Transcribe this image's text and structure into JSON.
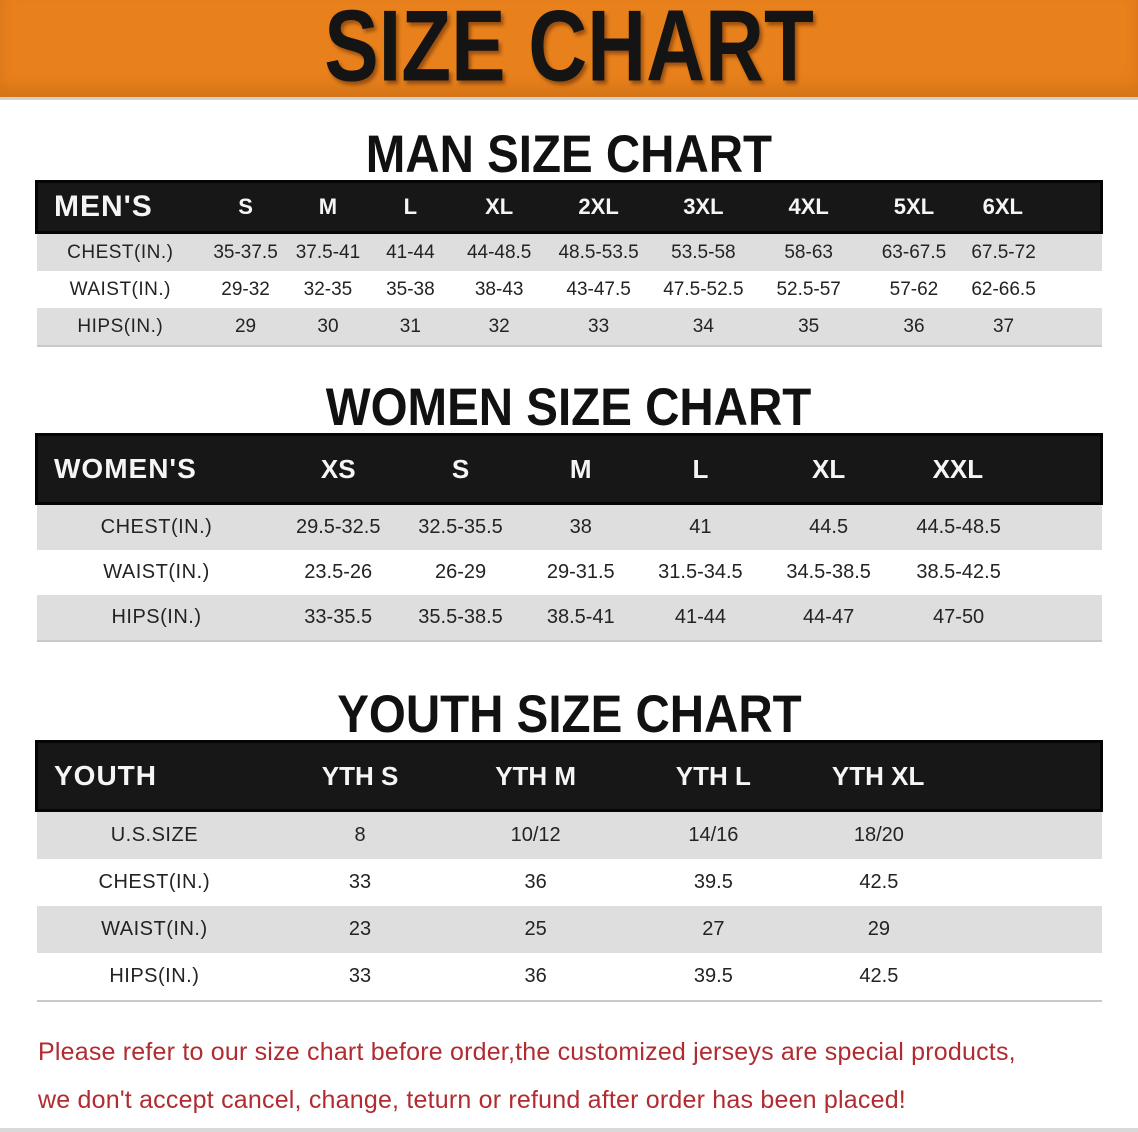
{
  "banner": {
    "title": "SIZE CHART",
    "bg_color": "#e8811c",
    "text_color": "#141414"
  },
  "sections": [
    {
      "title": "MAN SIZE CHART",
      "table": {
        "corner": "MEN'S",
        "sizes": [
          "S",
          "M",
          "L",
          "XL",
          "2XL",
          "3XL",
          "4XL",
          "5XL",
          "6XL"
        ],
        "rows": [
          {
            "label": "CHEST(IN.)",
            "values": [
              "35-37.5",
              "37.5-41",
              "41-44",
              "44-48.5",
              "48.5-53.5",
              "53.5-58",
              "58-63",
              "63-67.5",
              "67.5-72"
            ]
          },
          {
            "label": "WAIST(IN.)",
            "values": [
              "29-32",
              "32-35",
              "35-38",
              "38-43",
              "43-47.5",
              "47.5-52.5",
              "52.5-57",
              "57-62",
              "62-66.5"
            ]
          },
          {
            "label": "HIPS(IN.)",
            "values": [
              "29",
              "30",
              "31",
              "32",
              "33",
              "34",
              "35",
              "36",
              "37"
            ]
          }
        ]
      }
    },
    {
      "title": "WOMEN SIZE CHART",
      "table": {
        "corner": "WOMEN'S",
        "sizes": [
          "XS",
          "S",
          "M",
          "L",
          "XL",
          "XXL"
        ],
        "rows": [
          {
            "label": "CHEST(IN.)",
            "values": [
              "29.5-32.5",
              "32.5-35.5",
              "38",
              "41",
              "44.5",
              "44.5-48.5"
            ]
          },
          {
            "label": "WAIST(IN.)",
            "values": [
              "23.5-26",
              "26-29",
              "29-31.5",
              "31.5-34.5",
              "34.5-38.5",
              "38.5-42.5"
            ]
          },
          {
            "label": "HIPS(IN.)",
            "values": [
              "33-35.5",
              "35.5-38.5",
              "38.5-41",
              "41-44",
              "44-47",
              "47-50"
            ]
          }
        ]
      }
    },
    {
      "title": "YOUTH SIZE CHART",
      "table": {
        "corner": "YOUTH",
        "sizes": [
          "YTH S",
          "YTH M",
          "YTH L",
          "YTH XL"
        ],
        "rows": [
          {
            "label": "U.S.SIZE",
            "values": [
              "8",
              "10/12",
              "14/16",
              "18/20"
            ]
          },
          {
            "label": "CHEST(IN.)",
            "values": [
              "33",
              "36",
              "39.5",
              "42.5"
            ]
          },
          {
            "label": "WAIST(IN.)",
            "values": [
              "23",
              "25",
              "27",
              "29"
            ]
          },
          {
            "label": "HIPS(IN.)",
            "values": [
              "33",
              "36",
              "39.5",
              "42.5"
            ]
          }
        ]
      }
    }
  ],
  "footer": {
    "line1": "Please refer to our size chart before order,the customized jerseys are special products,",
    "line2": "we don't accept cancel, change, teturn or refund after order has been placed!",
    "text_color": "#b12b30"
  }
}
